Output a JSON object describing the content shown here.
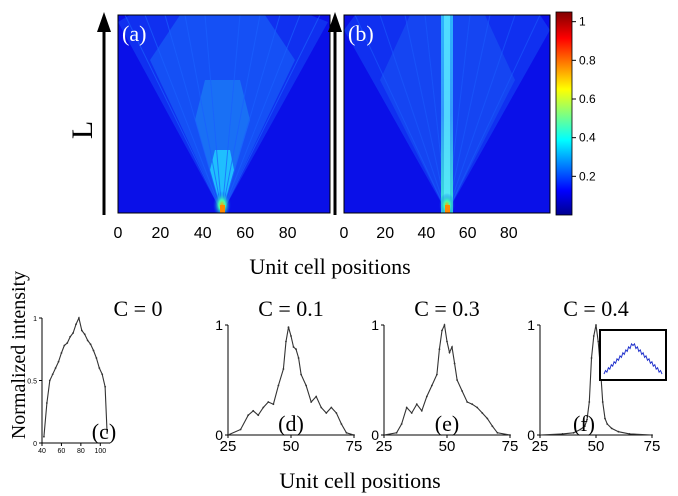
{
  "figure": {
    "top_y_label": "L",
    "top_x_label": "Unit cell positions",
    "bottom_y_label": "Normalized intensity",
    "bottom_x_label": "Unit cell positions"
  },
  "colorbar": {
    "ticks": [
      "0.2",
      "0.4",
      "0.6",
      "0.8",
      "1"
    ],
    "tick_values": [
      0.2,
      0.4,
      0.6,
      0.8,
      1.0
    ],
    "range": [
      0,
      1.05
    ],
    "colormap": "jet",
    "colors": [
      "#00008f",
      "#0000ff",
      "#00ffff",
      "#ffff00",
      "#ff0000",
      "#800000"
    ]
  },
  "chart_data": [
    {
      "type": "heatmap",
      "panel": "(a)",
      "xticks": [
        "0",
        "20",
        "40",
        "60",
        "80"
      ],
      "xtick_values": [
        0,
        20,
        40,
        60,
        80
      ],
      "xlim": [
        0,
        100
      ],
      "source_x": 50,
      "spread": "ballistic",
      "ylabel": "L"
    },
    {
      "type": "heatmap",
      "panel": "(b)",
      "xticks": [
        "0",
        "20",
        "40",
        "60",
        "80"
      ],
      "xtick_values": [
        0,
        20,
        40,
        60,
        80
      ],
      "xlim": [
        0,
        100
      ],
      "source_x": 50,
      "spread": "localized"
    },
    {
      "type": "line",
      "panel": "(c)",
      "title": "C = 0",
      "xticks": [
        "40",
        "60",
        "80",
        "100"
      ],
      "xtick_values": [
        40,
        60,
        80,
        100
      ],
      "xlim": [
        40,
        110
      ],
      "yticks": [
        "0",
        "0.5",
        "1"
      ],
      "ytick_values": [
        0,
        0.5,
        1
      ],
      "ylim": [
        0,
        1
      ],
      "x": [
        42,
        45,
        48,
        51,
        54,
        57,
        60,
        63,
        66,
        69,
        72,
        75,
        78,
        81,
        84,
        87,
        90,
        93,
        96,
        99,
        102,
        105,
        107
      ],
      "values": [
        0.05,
        0.32,
        0.5,
        0.55,
        0.6,
        0.65,
        0.72,
        0.78,
        0.8,
        0.85,
        0.88,
        0.95,
        1.0,
        0.9,
        0.87,
        0.82,
        0.79,
        0.74,
        0.68,
        0.6,
        0.55,
        0.45,
        0.08
      ]
    },
    {
      "type": "line",
      "panel": "(d)",
      "title": "C = 0.1",
      "xticks": [
        "25",
        "50",
        "75"
      ],
      "xtick_values": [
        25,
        50,
        75
      ],
      "xlim": [
        25,
        75
      ],
      "yticks": [
        "0",
        "1"
      ],
      "ytick_values": [
        0,
        1
      ],
      "ylim": [
        0,
        1
      ],
      "x": [
        25,
        30,
        33,
        35,
        37,
        39,
        41,
        43,
        45,
        47,
        48,
        49,
        50,
        51,
        52,
        53,
        54,
        56,
        58,
        60,
        62,
        64,
        66,
        68,
        70,
        72,
        75
      ],
      "values": [
        0.0,
        0.05,
        0.18,
        0.22,
        0.18,
        0.25,
        0.3,
        0.28,
        0.45,
        0.6,
        0.85,
        0.98,
        0.9,
        0.8,
        0.78,
        0.7,
        0.55,
        0.45,
        0.3,
        0.35,
        0.25,
        0.2,
        0.25,
        0.2,
        0.1,
        0.02,
        0.0
      ]
    },
    {
      "type": "line",
      "panel": "(e)",
      "title": "C = 0.3",
      "xticks": [
        "25",
        "50",
        "75"
      ],
      "xtick_values": [
        25,
        50,
        75
      ],
      "xlim": [
        25,
        75
      ],
      "yticks": [
        "0",
        "1"
      ],
      "ytick_values": [
        0,
        1
      ],
      "ylim": [
        0,
        1
      ],
      "x": [
        25,
        30,
        32,
        34,
        36,
        38,
        40,
        42,
        44,
        46,
        47,
        48,
        49,
        50,
        51,
        52,
        53,
        54,
        56,
        58,
        60,
        62,
        64,
        66,
        68,
        70,
        75
      ],
      "values": [
        0.0,
        0.02,
        0.1,
        0.25,
        0.2,
        0.28,
        0.22,
        0.35,
        0.45,
        0.55,
        0.78,
        0.95,
        1.0,
        0.85,
        0.75,
        0.8,
        0.65,
        0.5,
        0.4,
        0.3,
        0.28,
        0.25,
        0.2,
        0.15,
        0.08,
        0.02,
        0.0
      ]
    },
    {
      "type": "line",
      "panel": "(f)",
      "title": "C = 0.4",
      "xticks": [
        "25",
        "50",
        "75"
      ],
      "xtick_values": [
        25,
        50,
        75
      ],
      "xlim": [
        25,
        75
      ],
      "yticks": [
        "0",
        "1"
      ],
      "ytick_values": [
        0,
        1
      ],
      "ylim": [
        0,
        1
      ],
      "x": [
        25,
        35,
        40,
        43,
        45,
        46,
        47,
        48,
        49,
        50,
        51,
        52,
        53,
        54,
        55,
        57,
        60,
        65,
        75
      ],
      "values": [
        0.0,
        0.01,
        0.02,
        0.05,
        0.08,
        0.14,
        0.3,
        0.7,
        0.9,
        1.0,
        0.85,
        0.6,
        0.3,
        0.15,
        0.1,
        0.06,
        0.03,
        0.01,
        0.0
      ],
      "inset": {
        "present": true,
        "series_color": "#2233cc"
      }
    }
  ]
}
